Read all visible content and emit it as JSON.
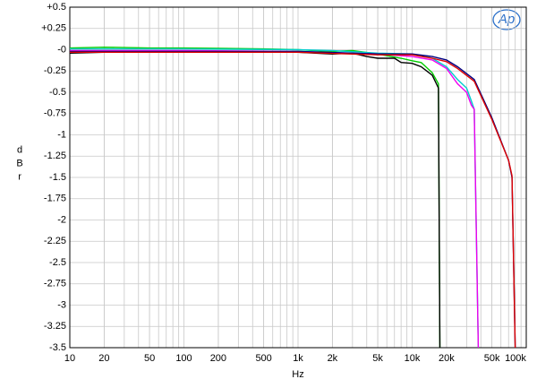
{
  "chart_data": {
    "type": "line",
    "logo_text": "Ap",
    "xlabel": "Hz",
    "ylabel": "dBr",
    "xscale": "log",
    "grid": true,
    "xlim": [
      10,
      100000
    ],
    "ylim": [
      -3.5,
      0.5
    ],
    "xticks": [
      10,
      20,
      50,
      100,
      200,
      500,
      {
        "value": 1000,
        "label": "1k"
      },
      {
        "value": 2000,
        "label": "2k"
      },
      {
        "value": 5000,
        "label": "5k"
      },
      {
        "value": 10000,
        "label": "10k"
      },
      {
        "value": 20000,
        "label": "20k"
      },
      {
        "value": 50000,
        "label": "50k"
      },
      {
        "value": 100000,
        "label": "100k"
      }
    ],
    "yticks": [
      {
        "value": 0.5,
        "label": "+0.5"
      },
      {
        "value": 0.25,
        "label": "+0.25"
      },
      {
        "value": 0,
        "label": "-0"
      },
      -0.25,
      -0.5,
      -0.75,
      -1,
      -1.25,
      -1.5,
      -1.75,
      -2,
      -2.25,
      -2.5,
      -2.75,
      -3,
      -3.25,
      -3.5
    ],
    "series": [
      {
        "color": "#00cc00",
        "x": [
          10,
          20,
          50,
          100,
          500,
          1000,
          2000,
          3000,
          5000,
          8000,
          10000,
          12000,
          15000,
          17000,
          17500
        ],
        "values": [
          0.02,
          0.03,
          0.02,
          0.02,
          0.01,
          0,
          -0.02,
          -0.01,
          -0.05,
          -0.1,
          -0.13,
          -0.15,
          -0.27,
          -0.4,
          -3.5
        ]
      },
      {
        "color": "#000000",
        "x": [
          10,
          20,
          30,
          50,
          100,
          200,
          500,
          1000,
          2000,
          3000,
          4000,
          5000,
          7000,
          8000,
          10000,
          12000,
          15000,
          17000,
          17500
        ],
        "values": [
          -0.04,
          -0.03,
          -0.02,
          -0.02,
          -0.02,
          -0.02,
          -0.02,
          -0.03,
          -0.05,
          -0.04,
          -0.08,
          -0.1,
          -0.1,
          -0.15,
          -0.16,
          -0.2,
          -0.3,
          -0.45,
          -3.5
        ]
      },
      {
        "color": "#00cccc",
        "x": [
          10,
          100,
          1000,
          2000,
          5000,
          10000,
          15000,
          20000,
          25000,
          30000,
          33000,
          35000,
          38000
        ],
        "values": [
          0.01,
          0.01,
          0,
          -0.01,
          -0.04,
          -0.05,
          -0.1,
          -0.2,
          -0.35,
          -0.45,
          -0.6,
          -0.7,
          -3.5
        ]
      },
      {
        "color": "#ee00ee",
        "x": [
          10,
          100,
          1000,
          5000,
          10000,
          15000,
          20000,
          25000,
          30000,
          33000,
          35000,
          38000
        ],
        "values": [
          -0.01,
          -0.01,
          -0.02,
          -0.05,
          -0.08,
          -0.12,
          -0.22,
          -0.4,
          -0.5,
          -0.65,
          -0.7,
          -3.5
        ]
      },
      {
        "color": "#000080",
        "x": [
          10,
          1000,
          5000,
          10000,
          15000,
          20000,
          25000,
          35000,
          50000,
          70000,
          75000,
          80000
        ],
        "values": [
          -0.02,
          -0.02,
          -0.05,
          -0.05,
          -0.08,
          -0.12,
          -0.2,
          -0.35,
          -0.8,
          -1.3,
          -1.5,
          -3.5
        ]
      },
      {
        "color": "#dd0000",
        "x": [
          10,
          1000,
          5000,
          10000,
          15000,
          20000,
          25000,
          35000,
          50000,
          70000,
          75000,
          80000
        ],
        "values": [
          -0.03,
          -0.03,
          -0.06,
          -0.06,
          -0.1,
          -0.14,
          -0.22,
          -0.37,
          -0.82,
          -1.3,
          -1.48,
          -3.5
        ]
      }
    ]
  }
}
